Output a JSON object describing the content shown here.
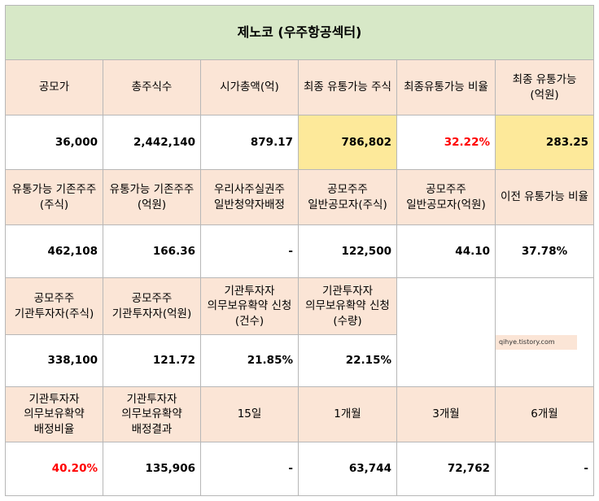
{
  "title": "제노코 (우주항공섹터)",
  "rows": [
    {
      "headers": [
        "공모가",
        "총주식수",
        "시가총액(억)",
        "최종 유통가능 주식",
        "최종유통가능 비율",
        "최종 유통가능(억원)"
      ],
      "values": [
        "36,000",
        "2,442,140",
        "879.17",
        "786,802",
        "32.22%",
        "283.25"
      ]
    },
    {
      "headers": [
        "유통가능 기존주주(주식)",
        "유통가능 기존주주(억원)",
        "우리사주실권주 일반청약자배정",
        "공모주주 일반공모자(주식)",
        "공모주주 일반공모자(억원)",
        "이전 유통가능 비율"
      ],
      "values": [
        "462,108",
        "166.36",
        "-",
        "122,500",
        "44.10",
        "37.78%"
      ]
    },
    {
      "headers": [
        "공모주주 기관투자자(주식)",
        "공모주주 기관투자자(억원)",
        "기관투자자 의무보유확약 신청(건수)",
        "기관투자자 의무보유확약 신청(수량)",
        "",
        ""
      ],
      "values": [
        "338,100",
        "121.72",
        "21.85%",
        "22.15%",
        "",
        ""
      ]
    },
    {
      "headers": [
        "기관투자자 의무보유확약 배정비율",
        "기관투자자 의무보유확약 배정결과",
        "15일",
        "1개월",
        "3개월",
        "6개월"
      ],
      "values": [
        "40.20%",
        "135,906",
        "-",
        "63,744",
        "72,762",
        "-"
      ]
    }
  ],
  "watermark": "qihye.tistory.com",
  "colors": {
    "title_bg": "#d7e8c7",
    "header_bg": "#fbe5d6",
    "highlight_bg": "#fde99a",
    "negative_text": "#ff0000"
  }
}
